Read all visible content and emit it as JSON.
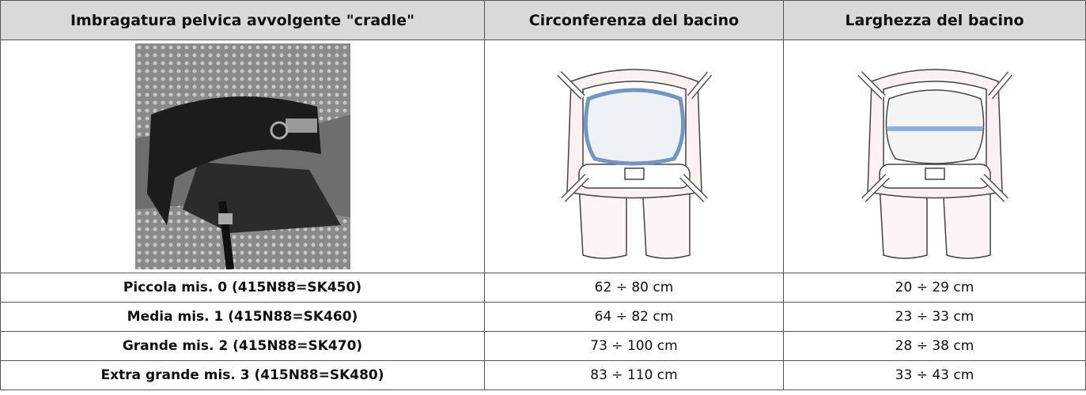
{
  "table": {
    "header": [
      "Imbragatura pelvica avvolgente \"cradle\"",
      "Circonferenza del bacino",
      "Larghezza del bacino"
    ],
    "rows": [
      [
        "Piccola mis. 0 (415N88=SK450)",
        "62 ÷ 80 cm",
        "20 ÷ 29 cm"
      ],
      [
        "Media mis. 1 (415N88=SK460)",
        "64 ÷ 82 cm",
        "23 ÷ 33 cm"
      ],
      [
        "Grande mis. 2 (415N88=SK470)",
        "73 ÷ 100 cm",
        "28 ÷ 38 cm"
      ],
      [
        "Extra grande mis. 3 (415N88=SK480)",
        "83 ÷ 110 cm",
        "33 ÷ 43 cm"
      ]
    ]
  }
}
